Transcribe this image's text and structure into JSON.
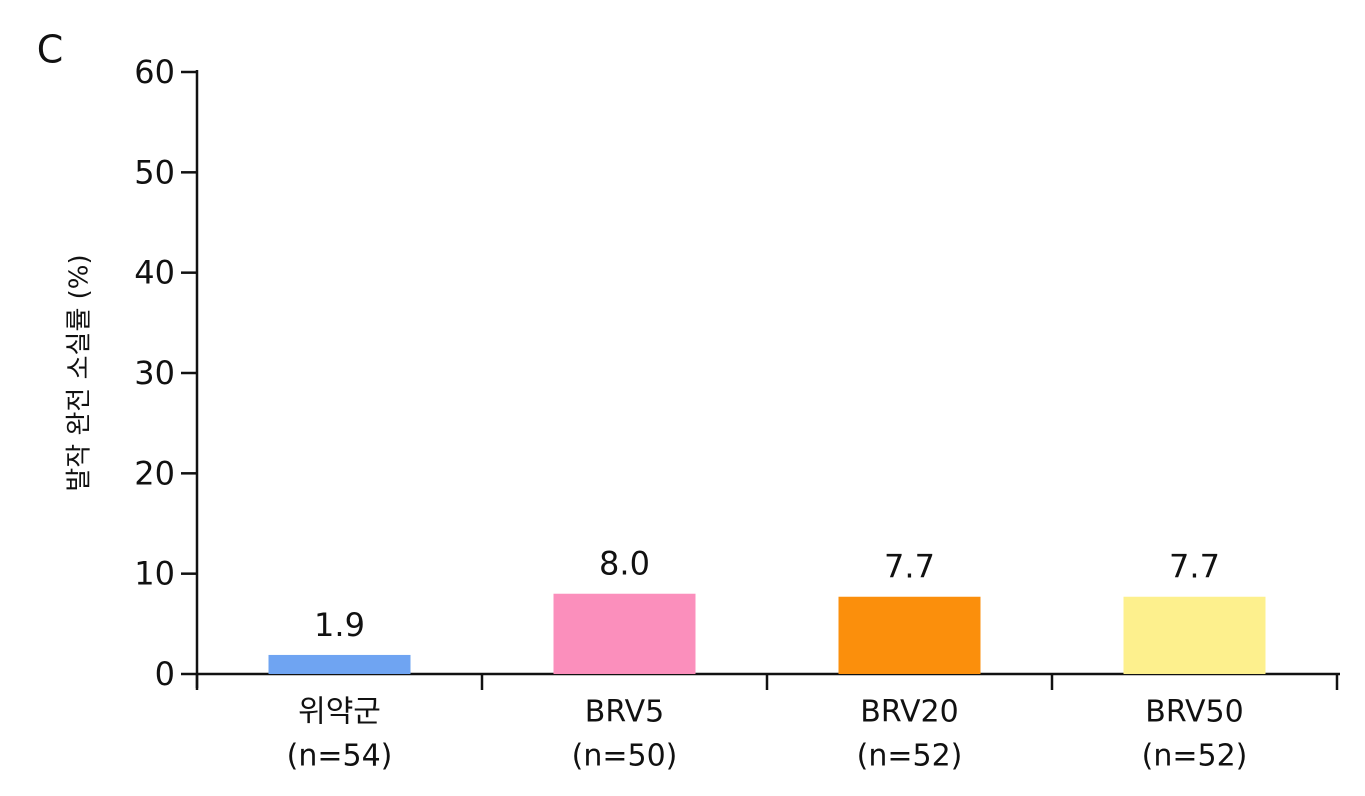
{
  "chart_data": {
    "type": "bar",
    "panel_label": "C",
    "y_label": "발작 완전 소실률 (%)",
    "categories": [
      [
        "위약군",
        "(n=54)"
      ],
      [
        "BRV5",
        "(n=50)"
      ],
      [
        "BRV20",
        "(n=52)"
      ],
      [
        "BRV50",
        "(n=52)"
      ]
    ],
    "values": [
      1.9,
      8.0,
      7.7,
      7.7
    ],
    "value_labels": [
      "1.9",
      "8.0",
      "7.7",
      "7.7"
    ],
    "colors": [
      "#6fa4f2",
      "#fb8fbc",
      "#fb8f0c",
      "#fdf08d"
    ],
    "ylim": [
      0,
      60
    ],
    "yticks": [
      0,
      10,
      20,
      30,
      40,
      50,
      60
    ]
  }
}
